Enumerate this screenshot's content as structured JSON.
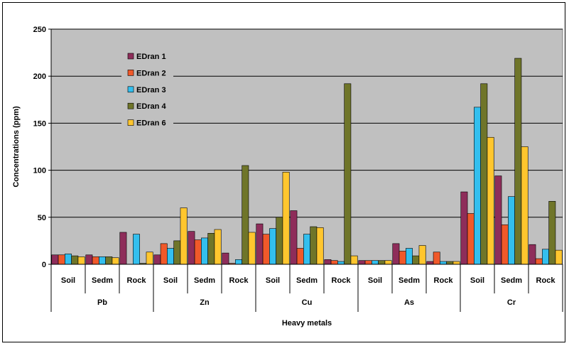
{
  "chart_data": {
    "type": "bar",
    "xlabel": "Heavy metals",
    "ylabel": "Concentrations (ppm)",
    "ylim": [
      0,
      250
    ],
    "yticks": [
      0,
      50,
      100,
      150,
      200,
      250
    ],
    "grid": true,
    "legend_position": "top-left",
    "groups": [
      {
        "name": "Pb",
        "categories": [
          "Soil",
          "Sedm",
          "Rock"
        ]
      },
      {
        "name": "Zn",
        "categories": [
          "Soil",
          "Sedm",
          "Rock"
        ]
      },
      {
        "name": "Cu",
        "categories": [
          "Soil",
          "Sedm",
          "Rock"
        ]
      },
      {
        "name": "As",
        "categories": [
          "Soil",
          "Sedm",
          "Rock"
        ]
      },
      {
        "name": "Cr",
        "categories": [
          "Soil",
          "Sedm",
          "Rock"
        ]
      }
    ],
    "categories": [
      "Pb Soil",
      "Pb Sedm",
      "Pb Rock",
      "Zn Soil",
      "Zn Sedm",
      "Zn Rock",
      "Cu Soil",
      "Cu Sedm",
      "Cu Rock",
      "As Soil",
      "As Sedm",
      "As Rock",
      "Cr Soil",
      "Cr Sedm",
      "Cr Rock"
    ],
    "series": [
      {
        "name": "EDran 1",
        "color": "#8E2D5A",
        "values": [
          10,
          10,
          34,
          10,
          35,
          12,
          43,
          57,
          5,
          4,
          22,
          3,
          77,
          94,
          21
        ]
      },
      {
        "name": "EDran 2",
        "color": "#F0592A",
        "values": [
          10,
          8,
          0,
          22,
          26,
          1,
          32,
          17,
          4,
          4,
          14,
          13,
          54,
          42,
          6
        ]
      },
      {
        "name": "EDran 3",
        "color": "#33BFEE",
        "values": [
          11,
          8,
          32,
          17,
          28,
          5,
          38,
          32,
          3,
          4,
          17,
          3,
          167,
          72,
          16
        ]
      },
      {
        "name": "EDran 4",
        "color": "#6F7529",
        "values": [
          9,
          8,
          1,
          25,
          33,
          105,
          50,
          40,
          192,
          4,
          9,
          3,
          192,
          219,
          67
        ]
      },
      {
        "name": "EDran 6",
        "color": "#FFC62E",
        "values": [
          8,
          7,
          13,
          60,
          37,
          34,
          98,
          39,
          9,
          4,
          20,
          3,
          135,
          125,
          15
        ]
      }
    ]
  }
}
